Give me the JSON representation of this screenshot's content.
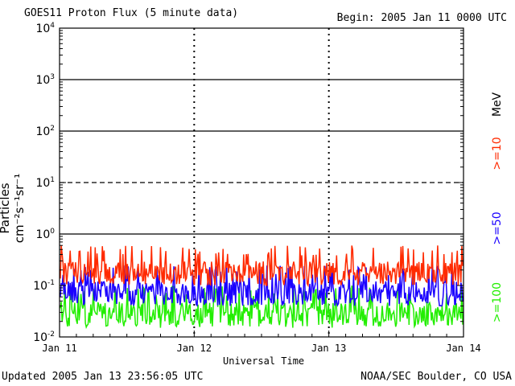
{
  "header": {
    "title": "GOES11 Proton Flux (5 minute data)",
    "begin": "Begin: 2005 Jan 11 0000 UTC"
  },
  "footer": {
    "updated": "Updated 2005 Jan 13 23:56:05 UTC",
    "credit": "NOAA/SEC Boulder, CO USA"
  },
  "side": {
    "unit": "MeV"
  },
  "chart_data": {
    "type": "line",
    "title": "GOES11 Proton Flux (5 minute data)",
    "xlabel": "Universal Time",
    "ylabel": "Particles cm⁻²s⁻¹sr⁻¹",
    "y_scale": "log",
    "ylim": [
      0.01,
      10000
    ],
    "x_ticks": [
      "Jan 11",
      "Jan 12",
      "Jan 13",
      "Jan 14"
    ],
    "y_ticks": [
      {
        "base": "10",
        "exp": "-2",
        "value": 0.01
      },
      {
        "base": "10",
        "exp": "-1",
        "value": 0.1
      },
      {
        "base": "10",
        "exp": "0",
        "value": 1
      },
      {
        "base": "10",
        "exp": "1",
        "value": 10
      },
      {
        "base": "10",
        "exp": "2",
        "value": 100
      },
      {
        "base": "10",
        "exp": "3",
        "value": 1000
      },
      {
        "base": "10",
        "exp": "4",
        "value": 10000
      }
    ],
    "reference_lines": [
      {
        "value": 1,
        "style": "solid"
      },
      {
        "value": 10,
        "style": "dashed"
      },
      {
        "value": 100,
        "style": "solid"
      },
      {
        "value": 1000,
        "style": "solid"
      }
    ],
    "series": [
      {
        "name": ">=10",
        "color": "#ff2a00",
        "typical_range": [
          0.1,
          0.6
        ]
      },
      {
        "name": ">=50",
        "color": "#1a00ff",
        "typical_range": [
          0.04,
          0.25
        ]
      },
      {
        "name": ">=100",
        "color": "#22ee00",
        "typical_range": [
          0.015,
          0.1
        ]
      }
    ],
    "grid": false
  }
}
